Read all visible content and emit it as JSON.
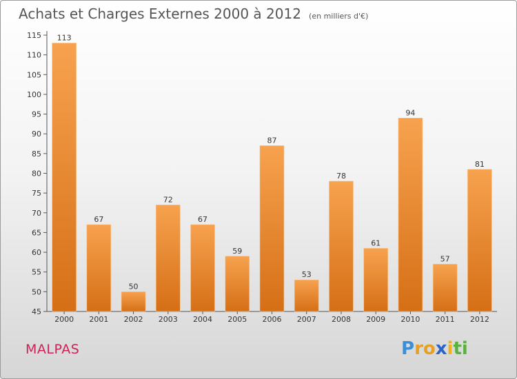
{
  "header": {
    "title": "Achats et Charges Externes 2000 à 2012",
    "unit": "(en milliers d'€)"
  },
  "footer": {
    "commune": "MALPAS",
    "logo_letters": [
      "P",
      "r",
      "o",
      "x",
      "i",
      "t",
      "i"
    ],
    "logo_colors": [
      "#3a8fd8",
      "#e8a020",
      "#e8a020",
      "#2a64c8",
      "#f0b020",
      "#5ab040",
      "#5ab040"
    ]
  },
  "colors": {
    "bar_top": "#f7a24f",
    "bar_bottom": "#d56f16"
  },
  "chart_data": {
    "type": "bar",
    "categories": [
      "2000",
      "2001",
      "2002",
      "2003",
      "2004",
      "2005",
      "2006",
      "2007",
      "2008",
      "2009",
      "2010",
      "2011",
      "2012"
    ],
    "values": [
      113,
      67,
      50,
      72,
      67,
      59,
      87,
      53,
      78,
      61,
      94,
      57,
      81
    ],
    "ylim": [
      45,
      115
    ],
    "yticks": [
      45,
      50,
      55,
      60,
      65,
      70,
      75,
      80,
      85,
      90,
      95,
      100,
      105,
      110,
      115
    ],
    "grid": false,
    "data_labels": true
  }
}
